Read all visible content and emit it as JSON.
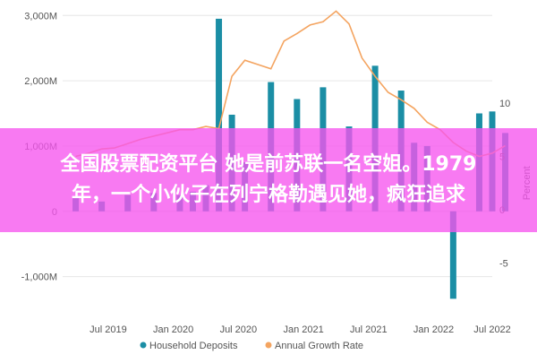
{
  "chart_data": {
    "type": "bar",
    "y_left": {
      "ticks": [
        -1000,
        0,
        1000,
        2000,
        3000
      ],
      "tick_labels": [
        "-1,000M",
        "0",
        "1,000M",
        "2,000M",
        "3,000M"
      ],
      "ylim": [
        -1500,
        3100
      ]
    },
    "y_right": {
      "ticks": [
        -5,
        0,
        5,
        10
      ],
      "tick_labels": [
        "-5",
        "0",
        "5",
        "10"
      ],
      "ylim": [
        -9.3,
        18.8
      ],
      "label": "Percent"
    },
    "x_tick_labels": [
      "Jul 2019",
      "Jan 2020",
      "Jul 2020",
      "Jan 2021",
      "Jul 2021",
      "Jan 2022",
      "Jul 2022"
    ],
    "x_range": [
      0,
      33
    ],
    "x_ticks": [
      3,
      8,
      13,
      18,
      23,
      28,
      33
    ],
    "x_tick_label_positions": [
      3.5,
      8.5,
      13.5,
      18.5,
      23.5,
      28.5,
      33
    ],
    "series": [
      {
        "name": "Household Deposits",
        "type": "bar",
        "color": "#1b8ea5",
        "x": [
          1,
          3,
          5,
          7,
          9,
          10,
          11,
          12,
          13,
          14,
          16,
          18,
          20,
          22,
          24,
          26,
          27,
          28,
          30,
          32,
          33,
          34
        ],
        "values": [
          200,
          150,
          250,
          280,
          250,
          300,
          400,
          2950,
          1480,
          750,
          1980,
          1720,
          1900,
          1300,
          2230,
          1850,
          1050,
          1000,
          -1340,
          1500,
          1530,
          1200
        ]
      },
      {
        "name": "Annual Growth Rate",
        "type": "line",
        "color": "#f4a460",
        "x": [
          1,
          2,
          3,
          4,
          5,
          6,
          7,
          8,
          9,
          10,
          11,
          12,
          13,
          14,
          15,
          16,
          17,
          18,
          19,
          20,
          21,
          22,
          23,
          24,
          25,
          26,
          27,
          28,
          29,
          30,
          31,
          32,
          33,
          34
        ],
        "values": [
          5.0,
          5.3,
          5.7,
          5.8,
          6.2,
          6.6,
          6.9,
          7.2,
          7.5,
          7.5,
          7.8,
          7.6,
          12.5,
          14.0,
          13.6,
          13.2,
          15.8,
          16.5,
          17.3,
          17.6,
          18.6,
          17.4,
          14.2,
          12.5,
          11.0,
          10.3,
          9.5,
          8.2,
          7.5,
          6.3,
          5.5,
          5.0,
          5.3,
          6.0
        ]
      }
    ],
    "legend_position": "bottom",
    "grid": true
  },
  "overlay": {
    "line1": "全国股票配资平台 她是前苏联一名空姐。1979",
    "line2": "年，一个小伙子在列宁格勒遇见她，疯狂追求"
  }
}
